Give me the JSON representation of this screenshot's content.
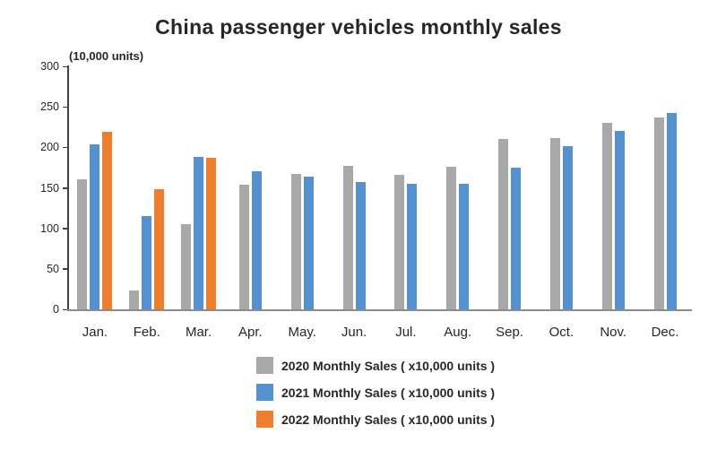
{
  "title": "China passenger vehicles monthly sales",
  "axis_unit_label": "(10,000 units)",
  "chart_data": {
    "type": "bar",
    "categories": [
      "Jan.",
      "Feb.",
      "Mar.",
      "Apr.",
      "May.",
      "Jun.",
      "Jul.",
      "Aug.",
      "Sep.",
      "Oct.",
      "Nov.",
      "Dec."
    ],
    "series": [
      {
        "name": "2020 Monthly Sales ( x10,000 units )",
        "color": "#a8a8a8",
        "values": [
          161,
          23,
          105,
          154,
          167,
          177,
          166,
          176,
          210,
          211,
          230,
          237
        ]
      },
      {
        "name": "2021 Monthly Sales ( x10,000 units )",
        "color": "#5590cf",
        "values": [
          204,
          115,
          188,
          170,
          164,
          157,
          155,
          155,
          175,
          201,
          220,
          243
        ]
      },
      {
        "name": "2022 Monthly Sales ( x10,000 units )",
        "color": "#ec7e2e",
        "values": [
          219,
          148,
          187,
          null,
          null,
          null,
          null,
          null,
          null,
          null,
          null,
          null
        ]
      }
    ],
    "title": "China passenger vehicles monthly sales",
    "xlabel": "",
    "ylabel": "(10,000 units)",
    "ylim": [
      0,
      300
    ],
    "yticks": [
      0,
      50,
      100,
      150,
      200,
      250,
      300
    ],
    "grid": false,
    "legend_position": "bottom"
  }
}
